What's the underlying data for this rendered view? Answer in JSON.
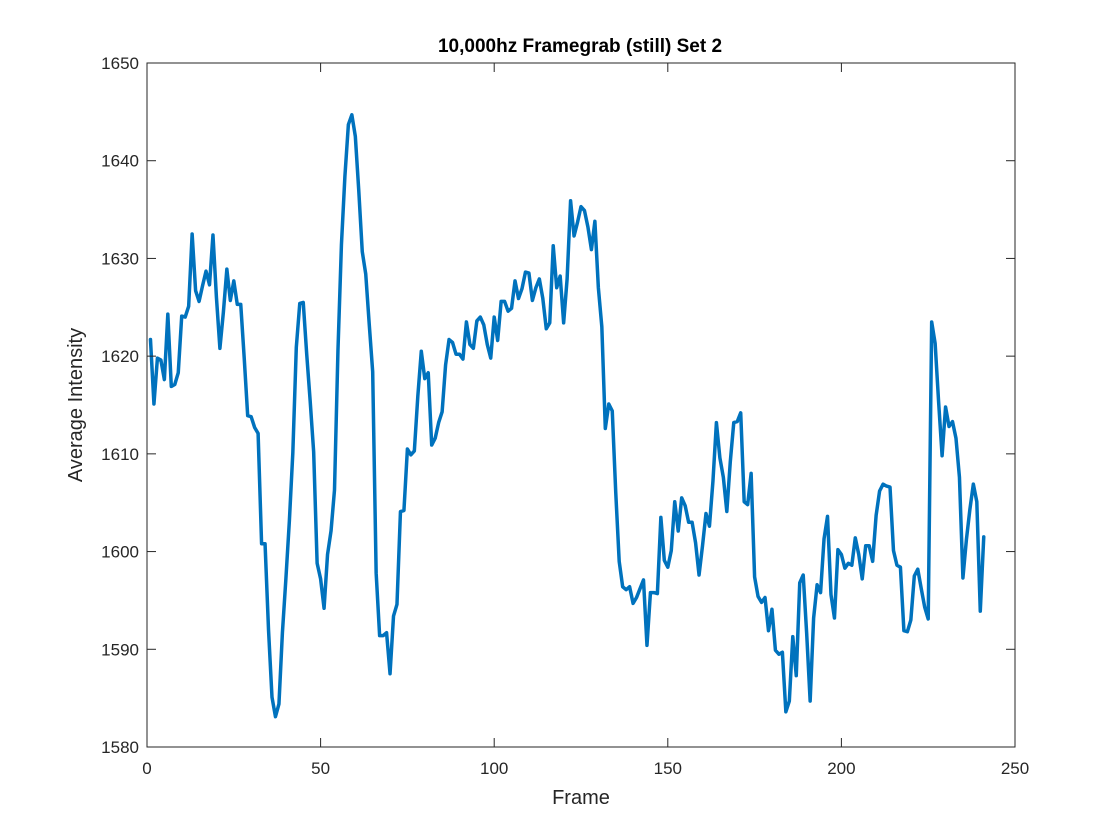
{
  "chart_data": {
    "type": "line",
    "title": "10,000hz Framegrab (still) Set 2",
    "xlabel": "Frame",
    "ylabel": "Average Intensity",
    "xlim": [
      0,
      250
    ],
    "ylim": [
      1580,
      1650
    ],
    "xticks": [
      "0",
      "50",
      "100",
      "150",
      "200",
      "250"
    ],
    "yticks": [
      "1580",
      "1590",
      "1600",
      "1610",
      "1620",
      "1630",
      "1640",
      "1650"
    ],
    "grid": false,
    "line_color": "#0072bd",
    "series": [
      {
        "x": [
          1,
          2,
          3,
          4,
          5,
          6,
          7,
          8,
          9,
          10,
          11,
          12,
          13,
          14,
          15,
          16,
          17,
          18,
          19,
          20,
          21,
          22,
          23,
          24,
          25,
          26,
          27,
          28,
          29,
          30,
          31,
          32,
          33,
          34,
          35,
          36,
          37,
          38,
          39,
          40,
          41,
          42,
          43,
          44,
          45,
          46,
          47,
          48,
          49,
          50,
          51,
          52,
          53,
          54,
          55,
          56,
          57,
          58,
          59,
          60,
          61,
          62,
          63,
          64,
          65,
          66,
          67,
          68,
          69,
          70,
          71,
          72,
          73,
          74,
          75,
          76,
          77,
          78,
          79,
          80,
          81,
          82,
          83,
          84,
          85,
          86,
          87,
          88,
          89,
          90,
          91,
          92,
          93,
          94,
          95,
          96,
          97,
          98,
          99,
          100,
          101,
          102,
          103,
          104,
          105,
          106,
          107,
          108,
          109,
          110,
          111,
          112,
          113,
          114,
          115,
          116,
          117,
          118,
          119,
          120,
          121,
          122,
          123,
          124,
          125,
          126,
          127,
          128,
          129,
          130,
          131,
          132,
          133,
          134,
          135,
          136,
          137,
          138,
          139,
          140,
          141,
          142,
          143,
          144,
          145,
          146,
          147,
          148,
          149,
          150,
          151,
          152,
          153,
          154,
          155,
          156,
          157,
          158,
          159,
          160,
          161,
          162,
          163,
          164,
          165,
          166,
          167,
          168,
          169,
          170,
          171,
          172,
          173,
          174,
          175,
          176,
          177,
          178,
          179,
          180,
          181,
          182,
          183,
          184,
          185,
          186,
          187,
          188,
          189,
          190,
          191,
          192,
          193,
          194,
          195,
          196,
          197,
          198,
          199,
          200,
          201,
          202,
          203,
          204,
          205,
          206,
          207,
          208,
          209,
          210,
          211,
          212,
          213,
          214,
          215,
          216,
          217,
          218,
          219,
          220,
          221,
          222,
          223,
          224,
          225,
          226,
          227,
          228,
          229,
          230,
          231,
          232,
          233,
          234,
          235,
          236,
          237,
          238,
          239,
          240,
          241
        ],
        "values": [
          1621.7,
          1615.1,
          1619.8,
          1619.6,
          1617.6,
          1624.3,
          1616.9,
          1617.1,
          1618.3,
          1624.1,
          1624.0,
          1625.1,
          1632.5,
          1626.7,
          1625.6,
          1627.2,
          1628.7,
          1627.3,
          1632.4,
          1626.0,
          1620.8,
          1624.5,
          1628.9,
          1625.7,
          1627.7,
          1625.3,
          1625.3,
          1619.8,
          1613.9,
          1613.8,
          1612.7,
          1612.1,
          1600.8,
          1600.8,
          1592.0,
          1585.1,
          1583.1,
          1584.4,
          1591.7,
          1597.2,
          1603.1,
          1610.1,
          1620.9,
          1625.4,
          1625.5,
          1620.2,
          1615.4,
          1610.2,
          1598.8,
          1597.2,
          1594.2,
          1599.7,
          1602.1,
          1606.3,
          1620.6,
          1631.4,
          1638.4,
          1643.7,
          1644.7,
          1642.5,
          1636.9,
          1630.7,
          1628.4,
          1623.3,
          1618.4,
          1597.8,
          1591.4,
          1591.4,
          1591.7,
          1587.5,
          1593.4,
          1594.6,
          1604.1,
          1604.2,
          1610.5,
          1609.9,
          1610.3,
          1615.9,
          1620.5,
          1617.7,
          1618.3,
          1610.9,
          1611.6,
          1613.2,
          1614.3,
          1619.1,
          1621.7,
          1621.4,
          1620.2,
          1620.2,
          1619.7,
          1623.5,
          1621.2,
          1620.8,
          1623.6,
          1624.0,
          1623.2,
          1621.2,
          1619.8,
          1624.0,
          1621.6,
          1625.6,
          1625.6,
          1624.6,
          1624.9,
          1627.7,
          1625.9,
          1626.9,
          1628.6,
          1628.5,
          1625.7,
          1627.0,
          1627.9,
          1625.9,
          1622.8,
          1623.4,
          1631.3,
          1627.0,
          1628.2,
          1623.4,
          1627.9,
          1635.9,
          1632.3,
          1633.7,
          1635.3,
          1634.9,
          1633.2,
          1630.9,
          1633.8,
          1627.0,
          1623.0,
          1612.6,
          1615.1,
          1614.4,
          1606.1,
          1599.0,
          1596.4,
          1596.1,
          1596.4,
          1594.7,
          1595.3,
          1596.2,
          1597.1,
          1590.4,
          1595.8,
          1595.8,
          1595.7,
          1603.5,
          1599.1,
          1598.4,
          1600.1,
          1605.1,
          1602.1,
          1605.5,
          1604.7,
          1603.0,
          1603.0,
          1600.9,
          1597.6,
          1600.6,
          1603.9,
          1602.6,
          1607.2,
          1613.2,
          1609.6,
          1607.6,
          1604.1,
          1609.2,
          1613.2,
          1613.3,
          1614.2,
          1605.1,
          1604.8,
          1608.0,
          1597.4,
          1595.4,
          1594.8,
          1595.3,
          1591.9,
          1594.1,
          1589.9,
          1589.5,
          1589.7,
          1583.6,
          1584.7,
          1591.3,
          1587.3,
          1596.8,
          1597.6,
          1591.6,
          1584.7,
          1593.2,
          1596.6,
          1595.8,
          1601.3,
          1603.6,
          1595.6,
          1593.2,
          1600.2,
          1599.7,
          1598.3,
          1598.8,
          1598.6,
          1601.4,
          1599.7,
          1597.2,
          1600.6,
          1600.6,
          1599.0,
          1603.7,
          1606.2,
          1606.9,
          1606.7,
          1606.6,
          1600.1,
          1598.6,
          1598.4,
          1591.9,
          1591.8,
          1593.0,
          1597.5,
          1598.2,
          1596.2,
          1594.3,
          1593.1,
          1623.5,
          1621.3,
          1615.3,
          1609.8,
          1614.8,
          1612.8,
          1613.3,
          1611.6,
          1607.6,
          1597.3,
          1601.2,
          1604.3,
          1606.9,
          1605.1,
          1593.9,
          1601.5
        ]
      }
    ]
  }
}
